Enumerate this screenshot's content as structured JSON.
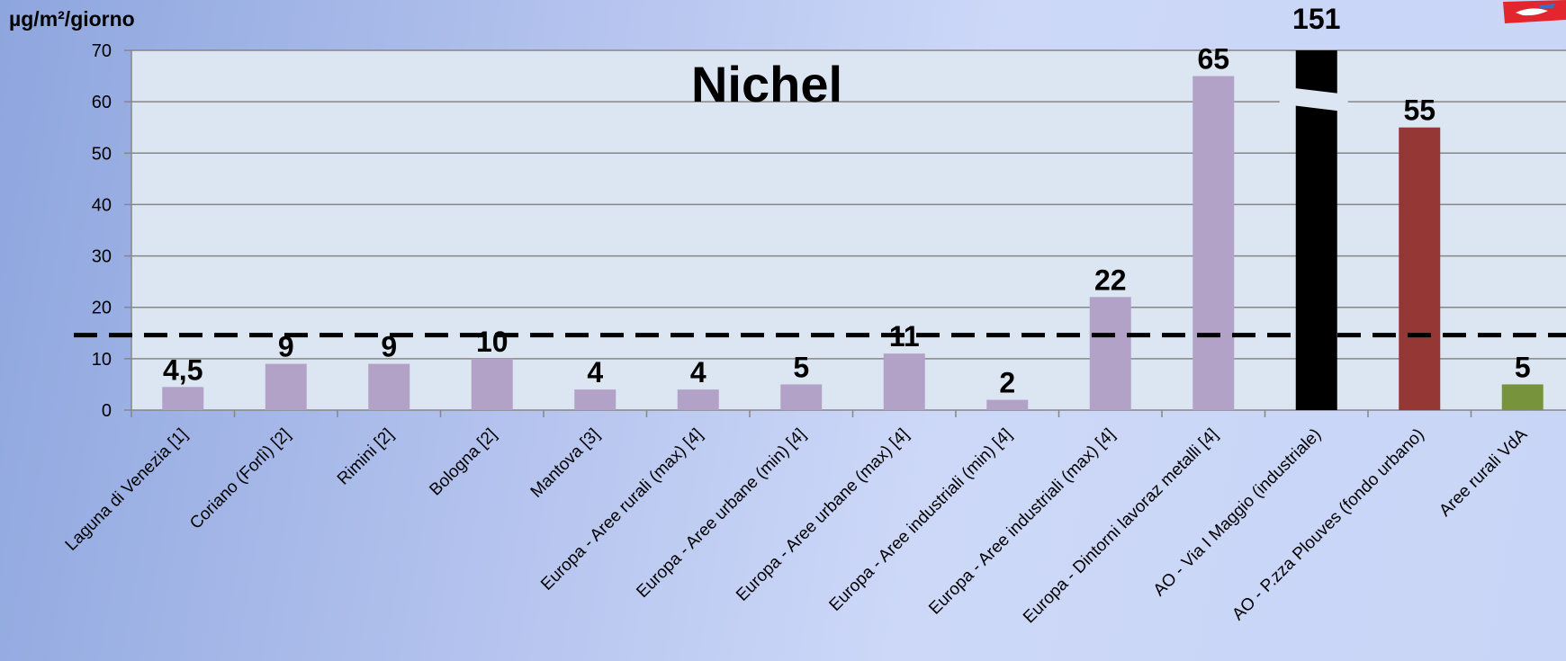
{
  "chart_data": {
    "type": "bar",
    "title": "Nichel",
    "ylabel": "µg/m²/giorno",
    "ylim": [
      0,
      70
    ],
    "yticks": [
      0,
      10,
      20,
      30,
      40,
      50,
      60,
      70
    ],
    "grid": true,
    "threshold": 14.6,
    "categories": [
      "Laguna di Venezia [1]",
      "Coriano (Forlì) [2]",
      "Rimini [2]",
      "Bologna [2]",
      "Mantova [3]",
      "Europa - Aree rurali (max) [4]",
      "Europa - Aree urbane (min)  [4]",
      "Europa - Aree urbane (max)  [4]",
      "Europa - Aree industriali (min)  [4]",
      "Europa - Aree industriali (max)  [4]",
      "Europa - Dintorni lavoraz metalli  [4]",
      "AO - Via I Maggio (industriale)",
      "AO - P.zza Plouves (fondo urbano)",
      "Aree rurali VdA"
    ],
    "values": [
      4.5,
      9,
      9,
      10,
      4,
      4,
      5,
      11,
      2,
      22,
      65,
      151,
      55,
      5
    ],
    "data_labels": [
      "4,5",
      "9",
      "9",
      "10",
      "4",
      "4",
      "5",
      "11",
      "2",
      "22",
      "65",
      "151",
      "55",
      "5"
    ],
    "colors": [
      "#b3a2c7",
      "#b3a2c7",
      "#b3a2c7",
      "#b3a2c7",
      "#b3a2c7",
      "#b3a2c7",
      "#b3a2c7",
      "#b3a2c7",
      "#b3a2c7",
      "#b3a2c7",
      "#b3a2c7",
      "#000000",
      "#953735",
      "#77933c"
    ],
    "plot_background": "#dce6f2"
  }
}
